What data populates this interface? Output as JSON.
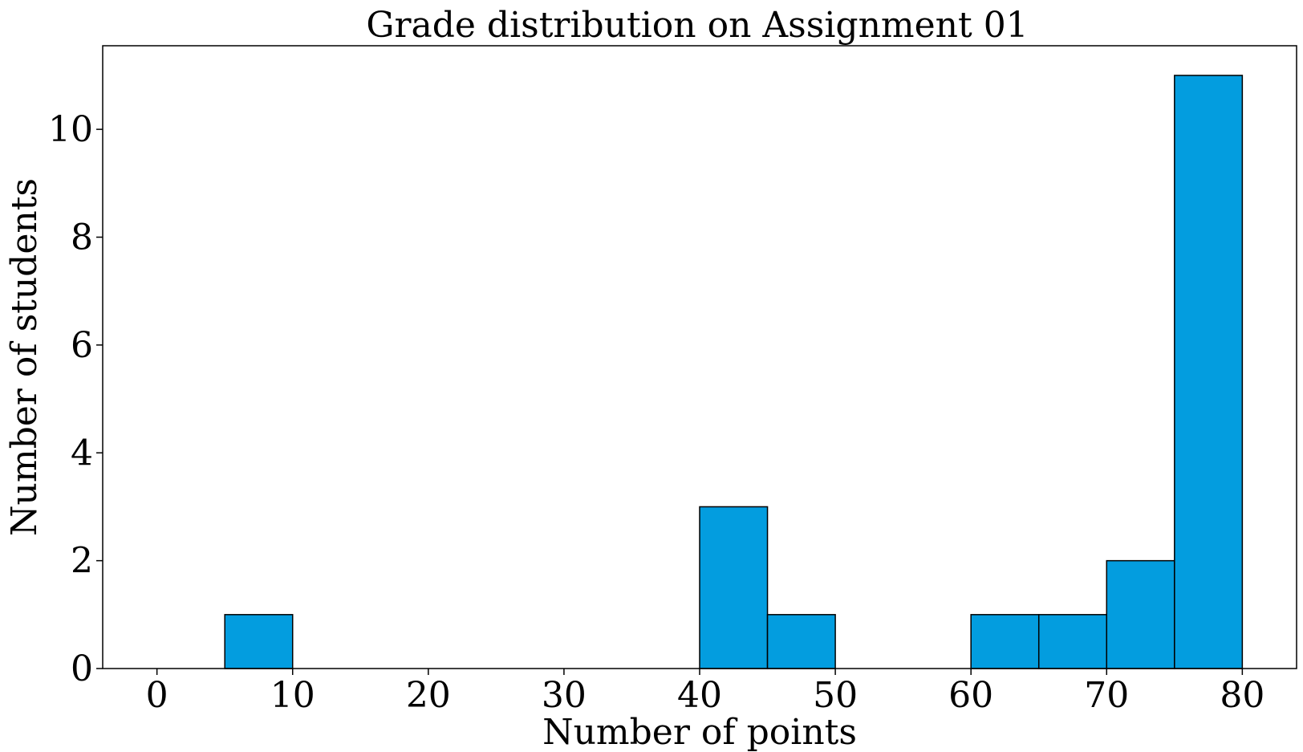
{
  "chart_data": {
    "type": "bar",
    "title": "Grade distribution on Assignment 01",
    "xlabel": "Number of points",
    "ylabel": "Number of students",
    "xlim": [
      -4,
      84
    ],
    "ylim": [
      0,
      11.55
    ],
    "x_ticks": [
      0,
      10,
      20,
      30,
      40,
      50,
      60,
      70,
      80
    ],
    "y_ticks": [
      0,
      2,
      4,
      6,
      8,
      10
    ],
    "bin_width": 5,
    "bins": [
      {
        "start": 0,
        "end": 5,
        "count": 0
      },
      {
        "start": 5,
        "end": 10,
        "count": 1
      },
      {
        "start": 10,
        "end": 15,
        "count": 0
      },
      {
        "start": 15,
        "end": 20,
        "count": 0
      },
      {
        "start": 20,
        "end": 25,
        "count": 0
      },
      {
        "start": 25,
        "end": 30,
        "count": 0
      },
      {
        "start": 30,
        "end": 35,
        "count": 0
      },
      {
        "start": 35,
        "end": 40,
        "count": 0
      },
      {
        "start": 40,
        "end": 45,
        "count": 3
      },
      {
        "start": 45,
        "end": 50,
        "count": 1
      },
      {
        "start": 50,
        "end": 55,
        "count": 0
      },
      {
        "start": 55,
        "end": 60,
        "count": 0
      },
      {
        "start": 60,
        "end": 65,
        "count": 1
      },
      {
        "start": 65,
        "end": 70,
        "count": 1
      },
      {
        "start": 70,
        "end": 75,
        "count": 2
      },
      {
        "start": 75,
        "end": 80,
        "count": 11
      }
    ],
    "bar_color": "#039ddf",
    "edge_color": "#000000",
    "grid": false,
    "legend": null
  }
}
